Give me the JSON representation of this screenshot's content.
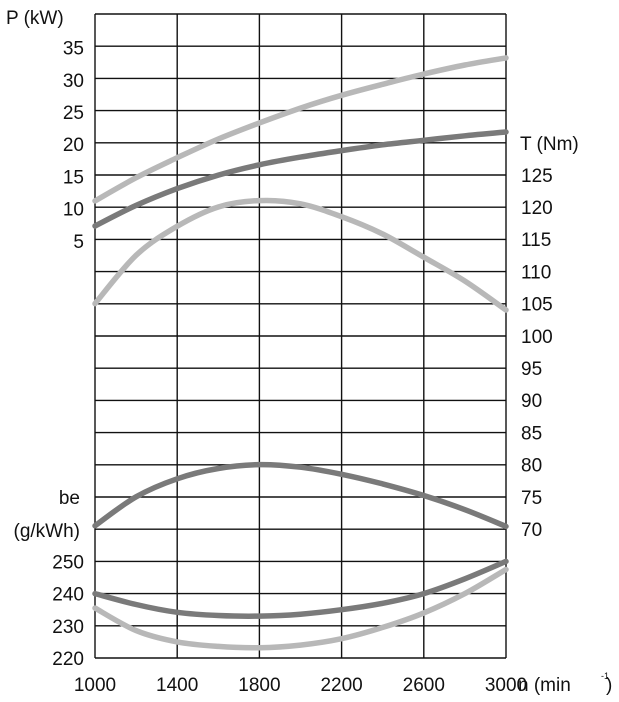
{
  "chart_data": {
    "type": "line",
    "x_ticks": [
      1000,
      1400,
      1800,
      2200,
      2600,
      3000
    ],
    "xlabel": "n (min",
    "xlabel_sup": "-1",
    "xlim": [
      1000,
      3000
    ],
    "grid": true,
    "axes": {
      "power": {
        "label": "P (kW)",
        "ticks": [
          5,
          10,
          15,
          20,
          25,
          30,
          35
        ],
        "side": "left"
      },
      "torque": {
        "label": "T (Nm)",
        "ticks": [
          70,
          75,
          80,
          85,
          90,
          95,
          100,
          105,
          110,
          115,
          120,
          125
        ],
        "side": "right"
      },
      "consumption": {
        "label_line1": "be",
        "label_line2": "(g/kWh)",
        "ticks": [
          220,
          230,
          240,
          250
        ],
        "side": "left"
      }
    },
    "series": [
      {
        "axis": "power",
        "color": "#b8b8b8",
        "x": [
          1000,
          1200,
          1400,
          1600,
          1800,
          2000,
          2200,
          2400,
          2600,
          2800,
          3000
        ],
        "values": [
          11.2,
          14.8,
          17.9,
          20.8,
          23.3,
          25.6,
          27.6,
          29.3,
          30.9,
          32.3,
          33.4
        ]
      },
      {
        "axis": "power",
        "color": "#7a7a7a",
        "x": [
          1000,
          1200,
          1400,
          1600,
          1800,
          2000,
          2200,
          2400,
          2600,
          2800,
          3000
        ],
        "values": [
          7.3,
          10.5,
          13.1,
          15.2,
          16.8,
          18.0,
          19.0,
          19.9,
          20.6,
          21.3,
          21.9
        ]
      },
      {
        "axis": "torque",
        "color": "#b8b8b8",
        "x": [
          1000,
          1200,
          1400,
          1600,
          1800,
          2000,
          2200,
          2400,
          2600,
          2800,
          3000
        ],
        "values": [
          105,
          112.5,
          117.0,
          120.0,
          121.0,
          120.5,
          118.5,
          115.8,
          112.2,
          108.5,
          104.0
        ]
      },
      {
        "axis": "torque",
        "color": "#7a7a7a",
        "x": [
          1000,
          1200,
          1400,
          1600,
          1800,
          2000,
          2200,
          2400,
          2600,
          2800,
          3000
        ],
        "values": [
          70.5,
          75.0,
          77.8,
          79.4,
          80.0,
          79.6,
          78.5,
          77.0,
          75.2,
          73.0,
          70.4
        ]
      },
      {
        "axis": "consumption",
        "color": "#7a7a7a",
        "x": [
          1000,
          1200,
          1400,
          1600,
          1800,
          2000,
          2200,
          2400,
          2600,
          2800,
          3000
        ],
        "values": [
          240,
          236.6,
          234.2,
          233.2,
          233.0,
          233.6,
          235.0,
          237.0,
          240.0,
          244.6,
          250.0
        ]
      },
      {
        "axis": "consumption",
        "color": "#b8b8b8",
        "x": [
          1000,
          1200,
          1400,
          1600,
          1800,
          2000,
          2200,
          2400,
          2600,
          2800,
          3000
        ],
        "values": [
          235.5,
          228.5,
          225.0,
          223.6,
          223.2,
          224.0,
          226.0,
          229.5,
          234.0,
          240.0,
          247.5
        ]
      }
    ]
  }
}
